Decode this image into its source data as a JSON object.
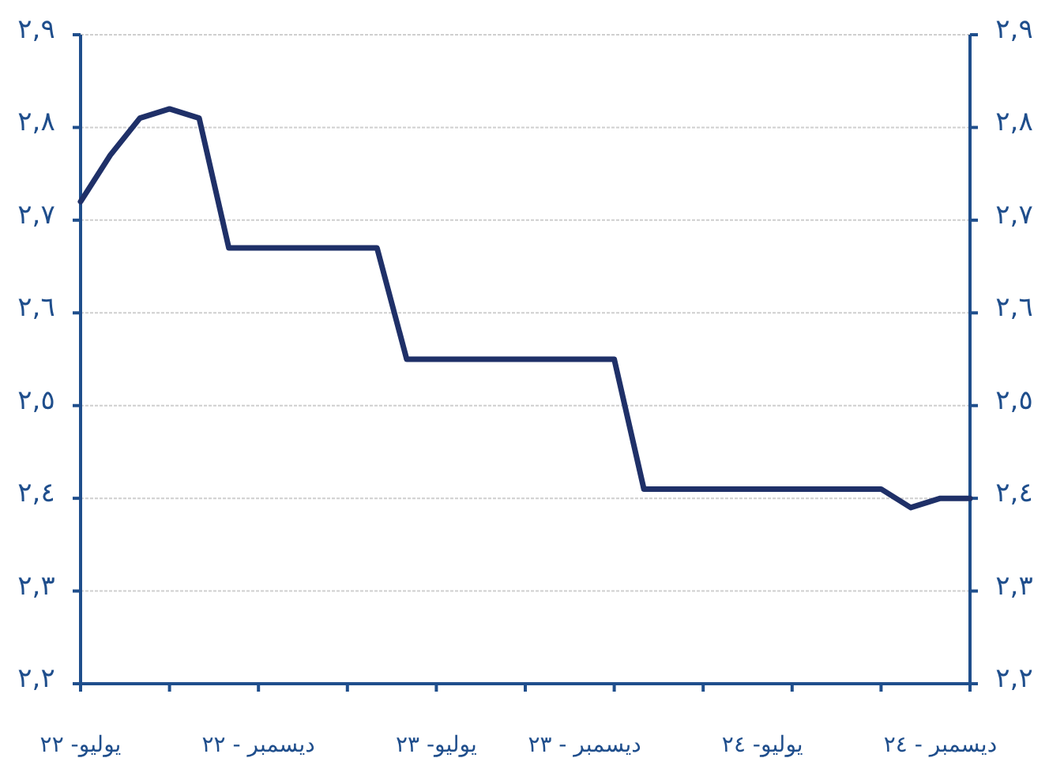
{
  "chart_data": {
    "type": "line",
    "categories": [
      "يوليو- ٢٢",
      null,
      null,
      null,
      null,
      null,
      "ديسمبر - ٢٢",
      null,
      null,
      null,
      null,
      null,
      "يوليو- ٢٣",
      null,
      null,
      null,
      null,
      "ديسمبر - ٢٣",
      null,
      null,
      null,
      null,
      null,
      "يوليو- ٢٤",
      null,
      null,
      null,
      null,
      null,
      "ديسمبر - ٢٤",
      null
    ],
    "values": [
      2.72,
      2.77,
      2.81,
      2.82,
      2.81,
      2.67,
      2.67,
      2.67,
      2.67,
      2.67,
      2.67,
      2.55,
      2.55,
      2.55,
      2.55,
      2.55,
      2.55,
      2.55,
      2.55,
      2.41,
      2.41,
      2.41,
      2.41,
      2.41,
      2.41,
      2.41,
      2.41,
      2.41,
      2.39,
      2.4,
      2.4
    ],
    "color": "#1f3068",
    "ylim": [
      2.2,
      2.9
    ],
    "yticks": [
      {
        "value": 2.2,
        "label": "٢,٢"
      },
      {
        "value": 2.3,
        "label": "٢,٣"
      },
      {
        "value": 2.4,
        "label": "٢,٤"
      },
      {
        "value": 2.5,
        "label": "٢,٥"
      },
      {
        "value": 2.6,
        "label": "٢,٦"
      },
      {
        "value": 2.7,
        "label": "٢,٧"
      },
      {
        "value": 2.8,
        "label": "٢,٨"
      },
      {
        "value": 2.9,
        "label": "٢,٩"
      }
    ],
    "y2lim": [
      2.2,
      2.9
    ],
    "y2ticks": [
      {
        "value": 2.2,
        "label": "٢,٢"
      },
      {
        "value": 2.3,
        "label": "٢,٣"
      },
      {
        "value": 2.4,
        "label": "٢,٤"
      },
      {
        "value": 2.5,
        "label": "٢,٥"
      },
      {
        "value": 2.6,
        "label": "٢,٦"
      },
      {
        "value": 2.7,
        "label": "٢,٧"
      },
      {
        "value": 2.8,
        "label": "٢,٨"
      },
      {
        "value": 2.9,
        "label": "٢,٩"
      }
    ],
    "grid": "y"
  }
}
